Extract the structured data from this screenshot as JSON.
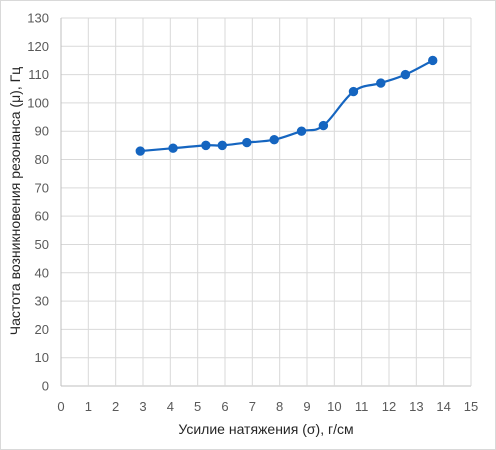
{
  "chart_data": {
    "type": "scatter",
    "line": "smooth",
    "xlabel": "Усилие натяжения (σ), г/см",
    "ylabel": "Частота возникновения резонанса (μ), Гц",
    "xlim": [
      0,
      15
    ],
    "ylim": [
      0,
      130
    ],
    "x_ticks": [
      "0",
      "1",
      "2",
      "3",
      "4",
      "5",
      "6",
      "7",
      "8",
      "9",
      "10",
      "11",
      "12",
      "13",
      "14",
      "15"
    ],
    "y_ticks": [
      "0",
      "10",
      "20",
      "30",
      "40",
      "50",
      "60",
      "70",
      "80",
      "90",
      "100",
      "110",
      "120",
      "130"
    ],
    "grid": true,
    "legend": "none",
    "series": [
      {
        "color": "#1565c0",
        "points": [
          {
            "x": 2.9,
            "y": 83
          },
          {
            "x": 4.1,
            "y": 84
          },
          {
            "x": 5.3,
            "y": 85
          },
          {
            "x": 5.9,
            "y": 85
          },
          {
            "x": 6.8,
            "y": 86
          },
          {
            "x": 7.8,
            "y": 87
          },
          {
            "x": 8.8,
            "y": 90
          },
          {
            "x": 9.6,
            "y": 92
          },
          {
            "x": 10.7,
            "y": 104
          },
          {
            "x": 11.7,
            "y": 107
          },
          {
            "x": 12.6,
            "y": 110
          },
          {
            "x": 13.6,
            "y": 115
          }
        ]
      }
    ]
  },
  "colors": {
    "gridline": "#d9d9d9",
    "axis": "#bfbfbf",
    "marker": "#1565c0"
  }
}
